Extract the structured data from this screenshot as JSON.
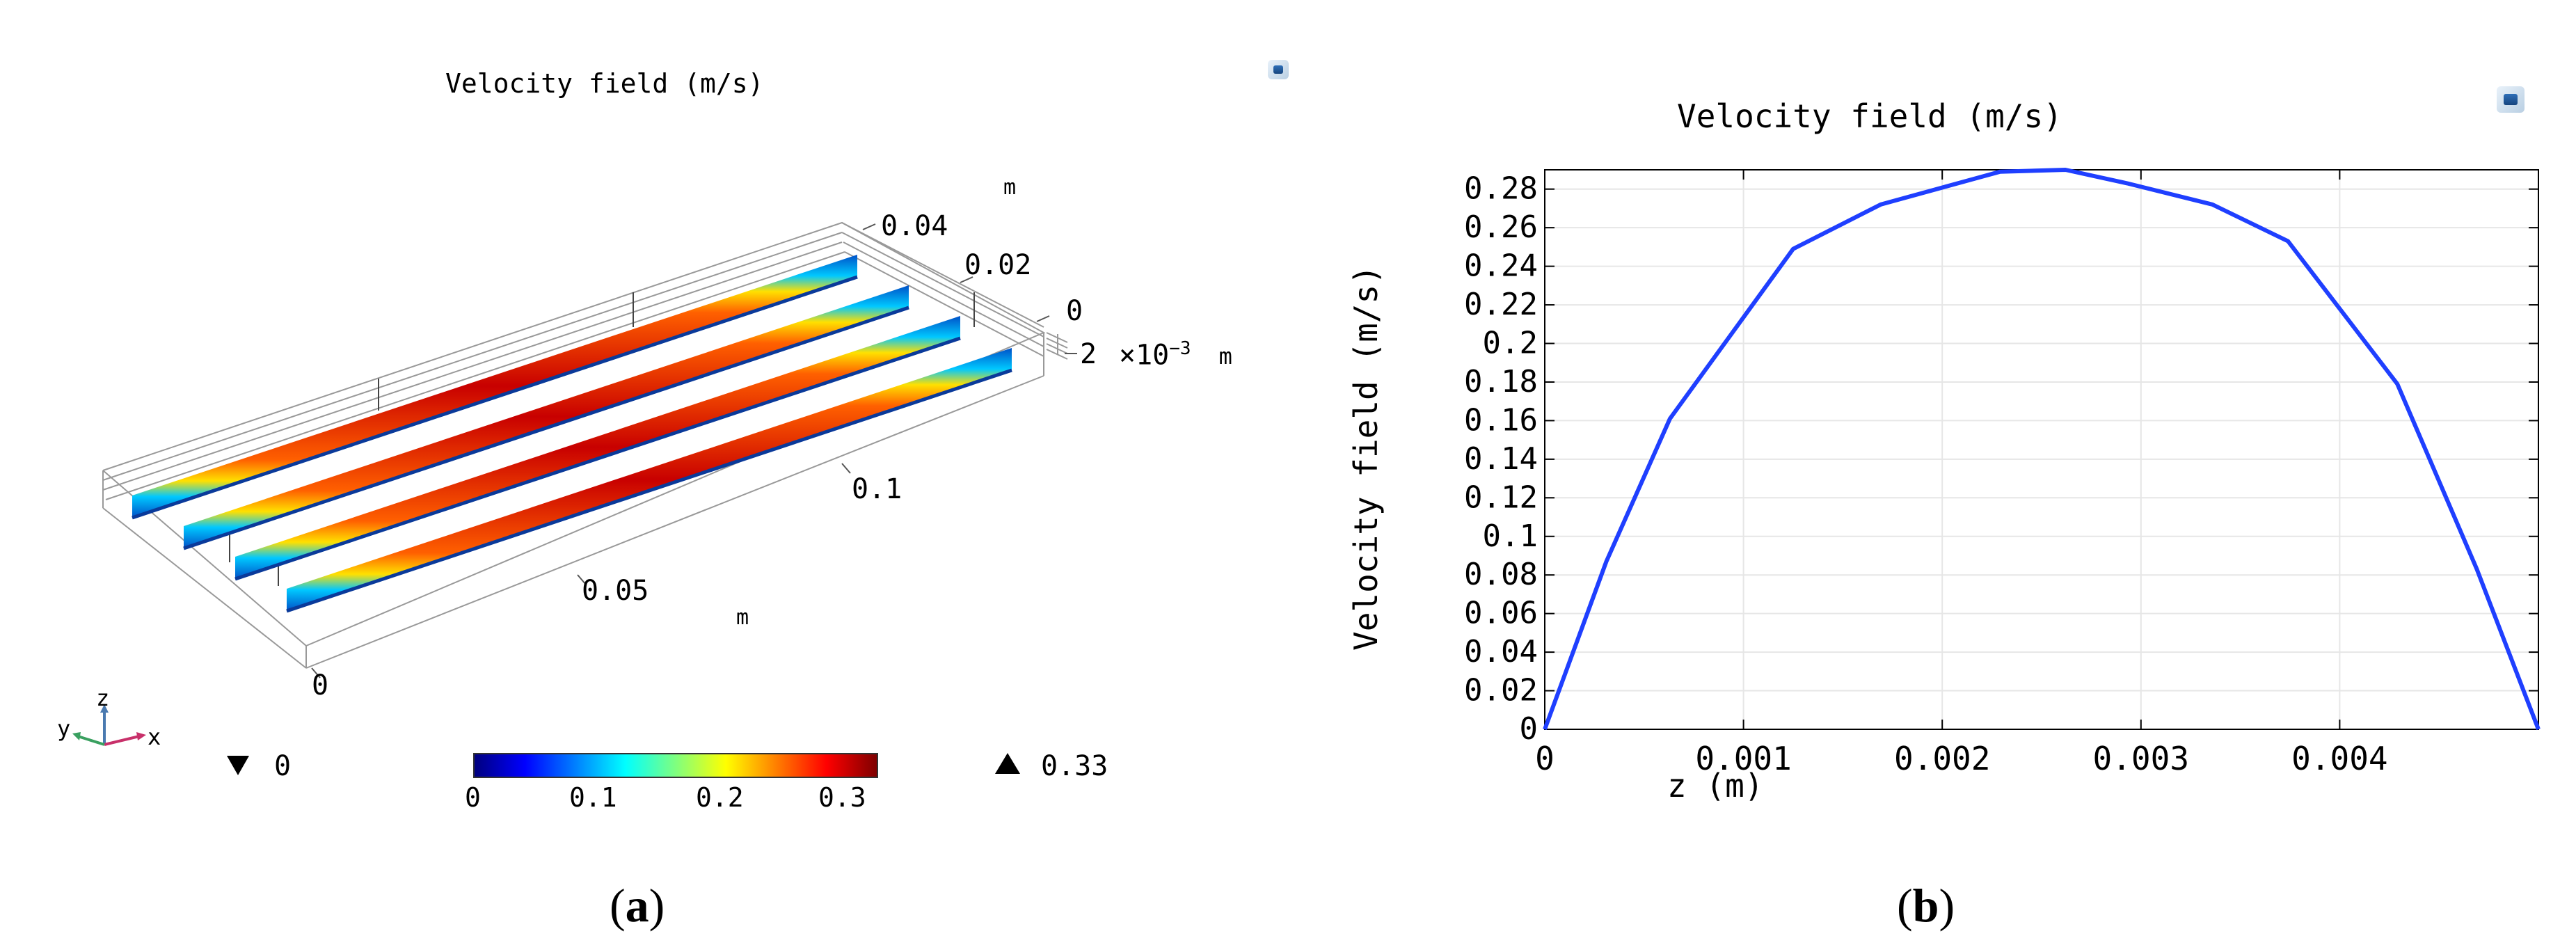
{
  "panel_a": {
    "title": "Velocity field (m/s)",
    "axis_labels": {
      "top_unit": "m",
      "tick_004": "0.04",
      "tick_002": "0.02",
      "tick_0_right": "0",
      "z_tick": "2",
      "z_unit_text": "×10",
      "z_unit_exp": "−3",
      "z_unit_m": "m",
      "tick_01": "0.1",
      "tick_005": "0.05",
      "bottom_unit": "m",
      "tick_0_bottom": "0"
    },
    "triad": {
      "z": "z",
      "y": "y",
      "x": "x"
    },
    "colorbar": {
      "min_marker": "0",
      "max_marker": "0.33",
      "ticks": [
        "0",
        "0.1",
        "0.2",
        "0.3"
      ],
      "colors": [
        "#00007f",
        "#0000ff",
        "#007fff",
        "#00ffff",
        "#7fff7f",
        "#ffff00",
        "#ff7f00",
        "#ff0000",
        "#7f0000"
      ]
    },
    "channel_count": 4,
    "caption_letter": "a"
  },
  "panel_b": {
    "caption_letter": "b"
  },
  "chart_data": {
    "type": "line",
    "title": "Velocity field (m/s)",
    "xlabel": "z (m)",
    "ylabel": "Velocity field (m/s)",
    "xlim": [
      0,
      0.005
    ],
    "ylim": [
      0,
      0.29
    ],
    "x_ticks": [
      0,
      0.001,
      0.002,
      0.003,
      0.004
    ],
    "x_tick_labels": [
      "0",
      "0.001",
      "0.002",
      "0.003",
      "0.004"
    ],
    "y_ticks": [
      0,
      0.02,
      0.04,
      0.06,
      0.08,
      0.1,
      0.12,
      0.14,
      0.16,
      0.18,
      0.2,
      0.22,
      0.24,
      0.26,
      0.28
    ],
    "y_tick_labels": [
      "0",
      "0.02",
      "0.04",
      "0.06",
      "0.08",
      "0.1",
      "0.12",
      "0.14",
      "0.16",
      "0.18",
      "0.2",
      "0.22",
      "0.24",
      "0.26",
      "0.28"
    ],
    "grid": true,
    "series": [
      {
        "color": "#1f3fff",
        "x": [
          0,
          0.00031,
          0.00063,
          0.00125,
          0.00169,
          0.00229,
          0.00262,
          0.00293,
          0.00336,
          0.00374,
          0.00429,
          0.00469,
          0.005
        ],
        "y": [
          0,
          0.087,
          0.161,
          0.249,
          0.272,
          0.289,
          0.29,
          0.283,
          0.272,
          0.253,
          0.179,
          0.083,
          0
        ]
      }
    ]
  }
}
